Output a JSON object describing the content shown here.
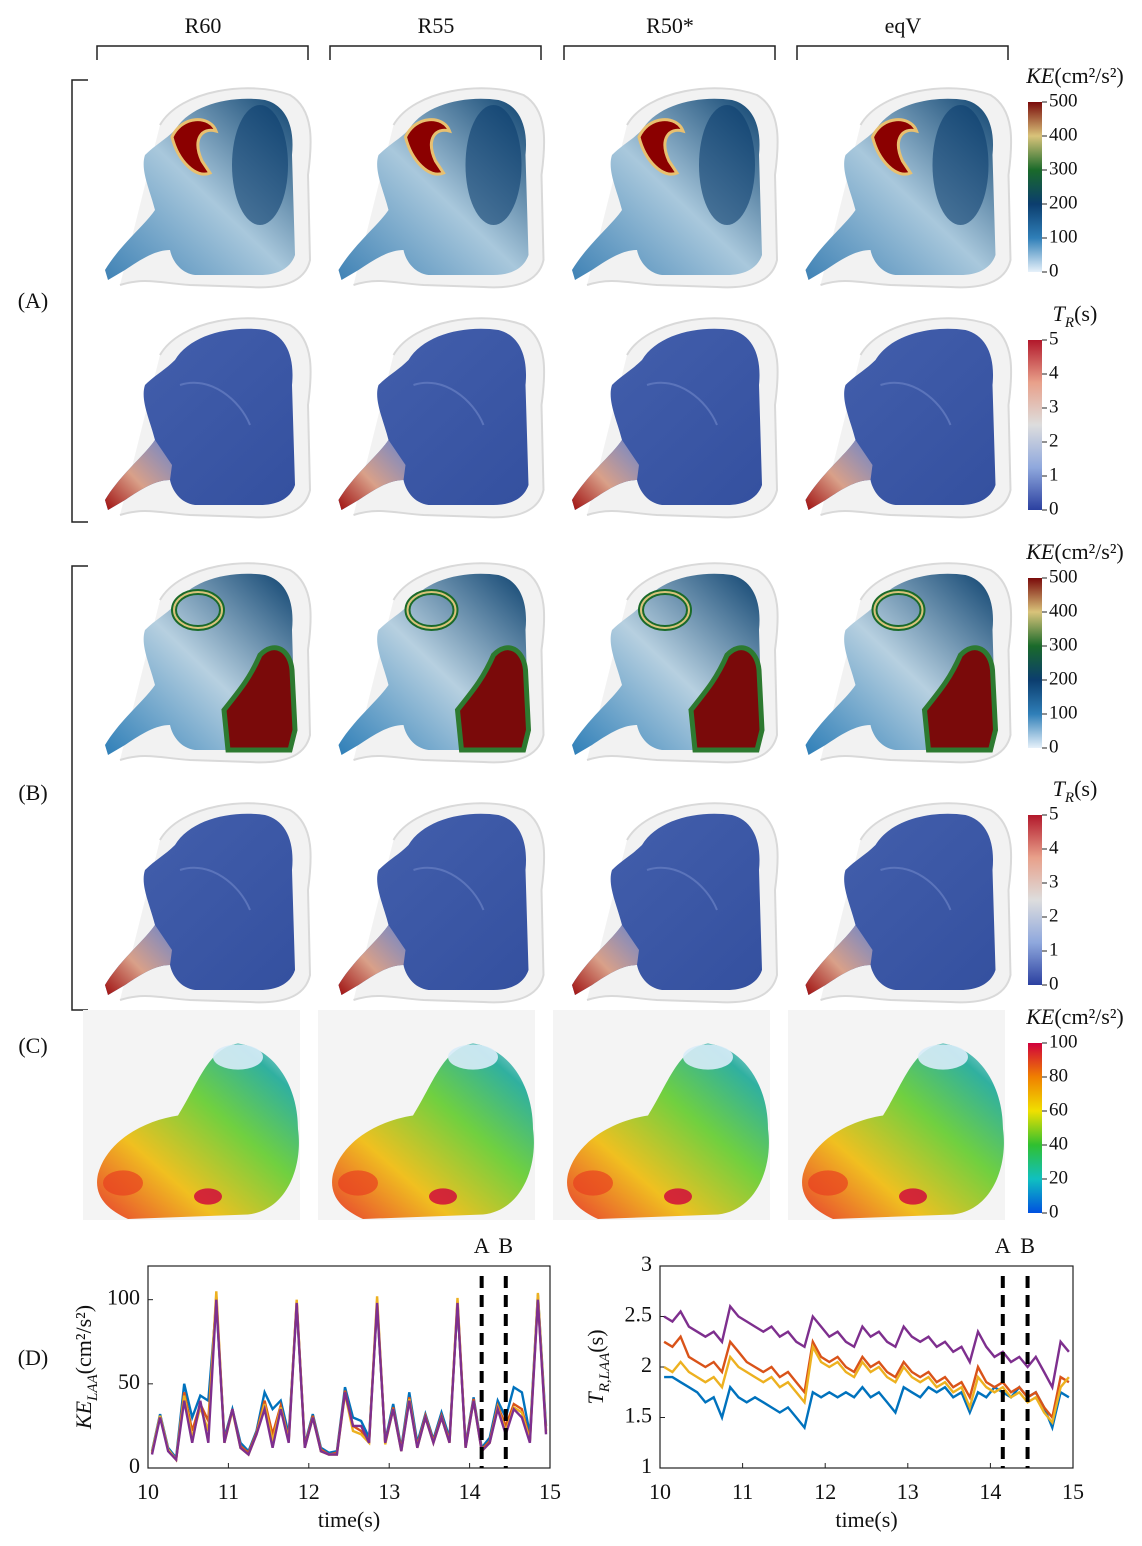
{
  "columns": [
    "R60",
    "R55",
    "R50*",
    "eqV"
  ],
  "rows": [
    "(A)",
    "(B)",
    "(C)",
    "(D)"
  ],
  "colorbars": [
    {
      "label": {
        "symbol": "KE",
        "unit": "(cm²/s²)"
      },
      "lim": [
        0,
        500
      ],
      "ticks": [
        0,
        100,
        200,
        300,
        400,
        500
      ],
      "colormap": [
        "#e6f1fa",
        "#2f7fb8",
        "#0b3d6e",
        "#1a6a2a",
        "#d9c37a",
        "#7a0a0a"
      ]
    },
    {
      "label": {
        "symbol": "T",
        "sub": "R",
        "unit": "(s)"
      },
      "lim": [
        0,
        5
      ],
      "ticks": [
        0,
        1,
        2,
        3,
        4,
        5
      ],
      "colormap": [
        "#2b40a0",
        "#8fa8dd",
        "#dddddd",
        "#e8a08a",
        "#b2182b"
      ]
    },
    {
      "label": {
        "symbol": "KE",
        "unit": "(cm²/s²)"
      },
      "lim": [
        0,
        500
      ],
      "ticks": [
        0,
        100,
        200,
        300,
        400,
        500
      ],
      "colormap": [
        "#e6f1fa",
        "#2f7fb8",
        "#0b3d6e",
        "#1a6a2a",
        "#d9c37a",
        "#7a0a0a"
      ]
    },
    {
      "label": {
        "symbol": "T",
        "sub": "R",
        "unit": "(s)"
      },
      "lim": [
        0,
        5
      ],
      "ticks": [
        0,
        1,
        2,
        3,
        4,
        5
      ],
      "colormap": [
        "#2b40a0",
        "#8fa8dd",
        "#dddddd",
        "#e8a08a",
        "#b2182b"
      ]
    },
    {
      "label": {
        "symbol": "KE",
        "unit": "(cm²/s²)"
      },
      "lim": [
        0,
        100
      ],
      "ticks": [
        0,
        20,
        40,
        60,
        80,
        100
      ],
      "colormap": [
        "#0050e0",
        "#10c0c0",
        "#30c030",
        "#f0e000",
        "#f08000",
        "#d0003c"
      ]
    }
  ],
  "chart_data": [
    {
      "type": "line",
      "xlabel": "time(s)",
      "ylabel": {
        "symbol": "KE",
        "sub": "LAA",
        "unit": "(cm²/s²)"
      },
      "x": [
        10.05,
        10.15,
        10.25,
        10.35,
        10.45,
        10.55,
        10.65,
        10.75,
        10.85,
        10.95,
        11.05,
        11.15,
        11.25,
        11.35,
        11.45,
        11.55,
        11.65,
        11.75,
        11.85,
        11.95,
        12.05,
        12.15,
        12.25,
        12.35,
        12.45,
        12.55,
        12.65,
        12.75,
        12.85,
        12.95,
        13.05,
        13.15,
        13.25,
        13.35,
        13.45,
        13.55,
        13.65,
        13.75,
        13.85,
        13.95,
        14.05,
        14.15,
        14.25,
        14.35,
        14.45,
        14.55,
        14.65,
        14.75,
        14.85,
        14.95
      ],
      "xlim": [
        10,
        15
      ],
      "xticks": [
        10,
        11,
        12,
        13,
        14,
        15
      ],
      "ylim": [
        0,
        120
      ],
      "yticks": [
        0,
        50,
        100
      ],
      "markers": [
        {
          "x": 14.15,
          "label": "A"
        },
        {
          "x": 14.45,
          "label": "B"
        }
      ],
      "series": [
        {
          "color": "#0072bd",
          "values": [
            10,
            32,
            12,
            6,
            50,
            30,
            43,
            40,
            98,
            18,
            35,
            15,
            10,
            22,
            45,
            35,
            40,
            20,
            97,
            14,
            32,
            12,
            9,
            10,
            48,
            30,
            28,
            18,
            97,
            16,
            38,
            12,
            45,
            15,
            32,
            17,
            33,
            18,
            97,
            14,
            42,
            12,
            18,
            40,
            30,
            48,
            45,
            20,
            103,
            25
          ]
        },
        {
          "color": "#d95319",
          "values": [
            9,
            31,
            11,
            5,
            45,
            22,
            38,
            28,
            102,
            16,
            35,
            13,
            9,
            21,
            40,
            20,
            37,
            17,
            99,
            13,
            31,
            11,
            8,
            9,
            46,
            25,
            22,
            16,
            99,
            15,
            36,
            11,
            42,
            13,
            31,
            16,
            31,
            16,
            99,
            13,
            41,
            11,
            16,
            37,
            25,
            38,
            35,
            17,
            101,
            22
          ]
        },
        {
          "color": "#edb120",
          "values": [
            9,
            31,
            11,
            5,
            43,
            18,
            36,
            22,
            105,
            15,
            34,
            12,
            8,
            20,
            38,
            16,
            36,
            16,
            100,
            12,
            30,
            10,
            8,
            8,
            44,
            22,
            20,
            15,
            102,
            14,
            35,
            10,
            41,
            12,
            30,
            15,
            30,
            15,
            101,
            12,
            40,
            10,
            15,
            36,
            22,
            36,
            33,
            16,
            104,
            21
          ]
        },
        {
          "color": "#7e2f8e",
          "values": [
            8,
            30,
            10,
            5,
            40,
            15,
            40,
            15,
            100,
            15,
            35,
            12,
            8,
            20,
            35,
            12,
            35,
            15,
            98,
            12,
            30,
            10,
            8,
            8,
            45,
            25,
            25,
            15,
            98,
            15,
            35,
            10,
            40,
            12,
            30,
            15,
            30,
            15,
            98,
            12,
            40,
            10,
            15,
            35,
            20,
            35,
            30,
            15,
            100,
            20
          ]
        }
      ]
    },
    {
      "type": "line",
      "xlabel": "time(s)",
      "ylabel": {
        "symbol": "T",
        "sub": "R,LAA",
        "unit": "(s)"
      },
      "x": [
        10.05,
        10.15,
        10.25,
        10.35,
        10.45,
        10.55,
        10.65,
        10.75,
        10.85,
        10.95,
        11.05,
        11.15,
        11.25,
        11.35,
        11.45,
        11.55,
        11.65,
        11.75,
        11.85,
        11.95,
        12.05,
        12.15,
        12.25,
        12.35,
        12.45,
        12.55,
        12.65,
        12.75,
        12.85,
        12.95,
        13.05,
        13.15,
        13.25,
        13.35,
        13.45,
        13.55,
        13.65,
        13.75,
        13.85,
        13.95,
        14.05,
        14.15,
        14.25,
        14.35,
        14.45,
        14.55,
        14.65,
        14.75,
        14.85,
        14.95
      ],
      "xlim": [
        10,
        15
      ],
      "xticks": [
        10,
        11,
        12,
        13,
        14,
        15
      ],
      "ylim": [
        1,
        3
      ],
      "yticks": [
        1,
        1.5,
        2,
        2.5,
        3
      ],
      "markers": [
        {
          "x": 14.15,
          "label": "A"
        },
        {
          "x": 14.45,
          "label": "B"
        }
      ],
      "series": [
        {
          "color": "#0072bd",
          "values": [
            1.9,
            1.9,
            1.85,
            1.8,
            1.75,
            1.65,
            1.7,
            1.5,
            1.8,
            1.7,
            1.65,
            1.7,
            1.65,
            1.6,
            1.55,
            1.6,
            1.5,
            1.4,
            1.75,
            1.7,
            1.75,
            1.7,
            1.75,
            1.7,
            1.8,
            1.7,
            1.75,
            1.65,
            1.55,
            1.8,
            1.75,
            1.7,
            1.8,
            1.75,
            1.8,
            1.7,
            1.75,
            1.55,
            1.75,
            1.7,
            1.8,
            1.75,
            1.7,
            1.8,
            1.7,
            1.75,
            1.6,
            1.4,
            1.75,
            1.7
          ]
        },
        {
          "color": "#d95319",
          "values": [
            2.25,
            2.2,
            2.3,
            2.1,
            2.05,
            2.0,
            2.05,
            1.95,
            2.25,
            2.15,
            2.05,
            2.0,
            1.95,
            2.0,
            1.9,
            1.95,
            1.85,
            1.75,
            2.25,
            2.1,
            2.05,
            2.1,
            2.0,
            1.95,
            2.1,
            2.0,
            2.05,
            1.95,
            1.9,
            2.05,
            1.95,
            1.9,
            1.95,
            1.85,
            1.9,
            1.8,
            1.85,
            1.7,
            2.0,
            1.85,
            1.8,
            1.85,
            1.75,
            1.8,
            1.7,
            1.75,
            1.6,
            1.5,
            1.9,
            1.85
          ]
        },
        {
          "color": "#edb120",
          "values": [
            2.0,
            1.95,
            2.05,
            1.95,
            1.9,
            1.85,
            1.9,
            1.8,
            2.1,
            2.0,
            1.95,
            1.9,
            1.85,
            1.9,
            1.8,
            1.85,
            1.75,
            1.65,
            2.2,
            2.05,
            2.0,
            2.05,
            1.95,
            1.9,
            2.05,
            1.95,
            2.0,
            1.9,
            1.85,
            2.0,
            1.9,
            1.85,
            1.9,
            1.8,
            1.85,
            1.75,
            1.8,
            1.6,
            1.9,
            1.8,
            1.75,
            1.8,
            1.7,
            1.75,
            1.65,
            1.7,
            1.55,
            1.45,
            1.8,
            1.9
          ]
        },
        {
          "color": "#7e2f8e",
          "values": [
            2.5,
            2.45,
            2.55,
            2.4,
            2.35,
            2.3,
            2.35,
            2.25,
            2.6,
            2.5,
            2.45,
            2.4,
            2.35,
            2.4,
            2.3,
            2.35,
            2.25,
            2.2,
            2.5,
            2.4,
            2.3,
            2.35,
            2.25,
            2.2,
            2.4,
            2.3,
            2.35,
            2.25,
            2.2,
            2.4,
            2.3,
            2.25,
            2.3,
            2.2,
            2.25,
            2.15,
            2.2,
            2.05,
            2.35,
            2.2,
            2.1,
            2.15,
            2.05,
            2.1,
            2.0,
            2.1,
            1.95,
            1.8,
            2.25,
            2.15
          ]
        }
      ]
    }
  ]
}
